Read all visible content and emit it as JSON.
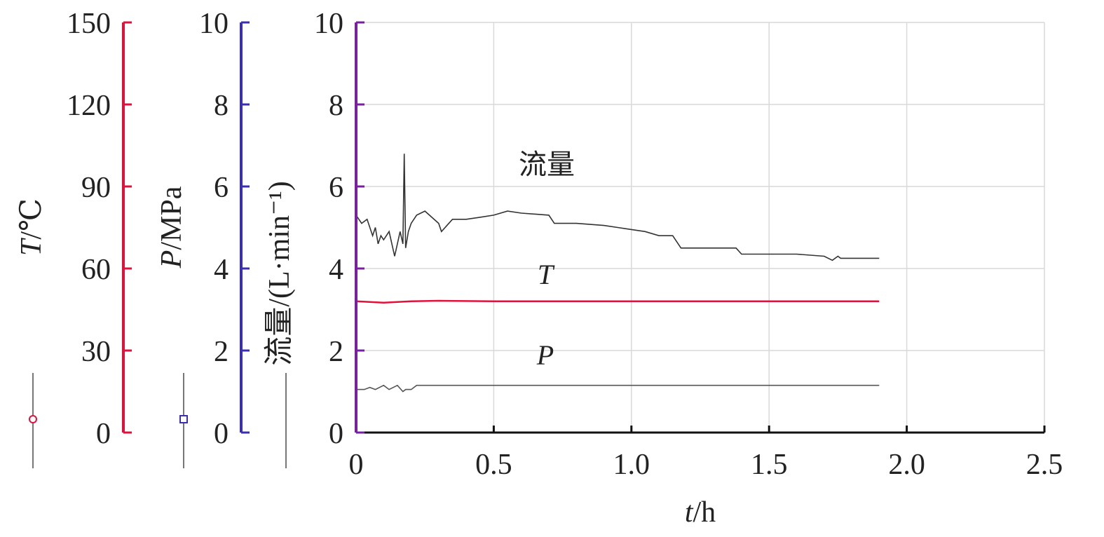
{
  "chart_data": {
    "type": "line",
    "xlabel_var": "t",
    "xlabel_unit": "/h",
    "xlim": [
      0,
      2.5
    ],
    "xticks": [
      "0",
      "0.5",
      "1.0",
      "1.5",
      "2.0",
      "2.5"
    ],
    "grid": true,
    "axes": {
      "temperature": {
        "label_var": "T",
        "label_unit": "/℃",
        "lim": [
          0,
          150
        ],
        "ticks": [
          "0",
          "30",
          "60",
          "90",
          "120",
          "150"
        ],
        "color": "#e0123c"
      },
      "pressure": {
        "label_var": "P",
        "label_unit": "/MPa",
        "lim": [
          0,
          10
        ],
        "ticks": [
          "0",
          "2",
          "4",
          "6",
          "8",
          "10"
        ],
        "color": "#3a2fb0"
      },
      "flow": {
        "label": "流量/(L·min⁻¹)",
        "lim": [
          0,
          10
        ],
        "ticks": [
          "0",
          "2",
          "4",
          "6",
          "8",
          "10"
        ],
        "color": "#7a1fa2"
      }
    },
    "series": [
      {
        "key": "flow",
        "name": "流量",
        "axis": "flow",
        "color": "#333333",
        "x": [
          0,
          0.02,
          0.04,
          0.06,
          0.07,
          0.08,
          0.09,
          0.1,
          0.12,
          0.14,
          0.15,
          0.16,
          0.17,
          0.175,
          0.18,
          0.19,
          0.2,
          0.22,
          0.25,
          0.3,
          0.31,
          0.35,
          0.4,
          0.45,
          0.5,
          0.55,
          0.6,
          0.7,
          0.72,
          0.8,
          0.9,
          0.95,
          1.0,
          1.05,
          1.1,
          1.15,
          1.18,
          1.2,
          1.3,
          1.38,
          1.4,
          1.42,
          1.5,
          1.6,
          1.7,
          1.73,
          1.75,
          1.76,
          1.8,
          1.9
        ],
        "y": [
          5.3,
          5.1,
          5.2,
          4.8,
          5.0,
          4.6,
          4.8,
          4.7,
          4.9,
          4.3,
          4.6,
          4.9,
          4.6,
          6.8,
          4.5,
          4.9,
          5.1,
          5.3,
          5.4,
          5.1,
          4.9,
          5.2,
          5.2,
          5.25,
          5.3,
          5.4,
          5.35,
          5.3,
          5.1,
          5.1,
          5.05,
          5.0,
          4.95,
          4.9,
          4.8,
          4.8,
          4.5,
          4.5,
          4.5,
          4.5,
          4.35,
          4.35,
          4.35,
          4.35,
          4.3,
          4.2,
          4.3,
          4.25,
          4.25,
          4.25
        ]
      },
      {
        "key": "T",
        "name": "T",
        "axis": "temperature",
        "color": "#e0123c",
        "x": [
          0,
          0.1,
          0.2,
          0.3,
          0.5,
          1.0,
          1.5,
          1.9
        ],
        "y": [
          48,
          47.5,
          48,
          48.2,
          48,
          48,
          48,
          48
        ]
      },
      {
        "key": "P",
        "name": "P",
        "axis": "pressure",
        "color": "#555555",
        "x": [
          0,
          0.03,
          0.05,
          0.07,
          0.1,
          0.12,
          0.15,
          0.17,
          0.18,
          0.2,
          0.22,
          0.25,
          0.5,
          1.0,
          1.5,
          1.9
        ],
        "y": [
          1.05,
          1.05,
          1.1,
          1.05,
          1.15,
          1.05,
          1.15,
          1.0,
          1.05,
          1.05,
          1.15,
          1.15,
          1.15,
          1.15,
          1.15,
          1.15
        ]
      }
    ]
  }
}
